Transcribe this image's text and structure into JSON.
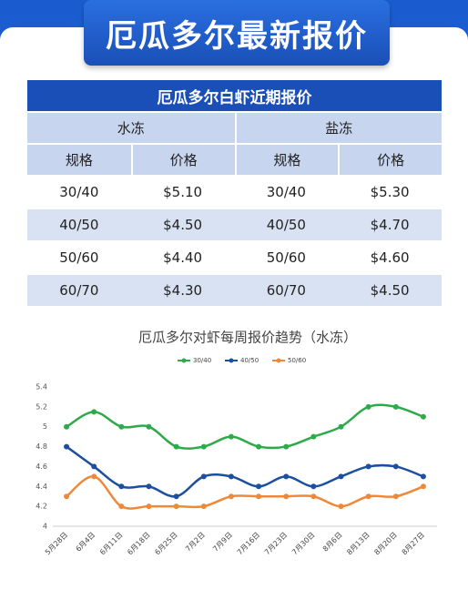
{
  "header": {
    "title": "厄瓜多尔最新报价"
  },
  "table": {
    "title": "厄瓜多尔白虾近期报价",
    "groups": [
      "水冻",
      "盐冻"
    ],
    "columns": [
      "规格",
      "价格",
      "规格",
      "价格"
    ],
    "rows": [
      [
        "30/40",
        "$5.10",
        "30/40",
        "$5.30"
      ],
      [
        "40/50",
        "$4.50",
        "40/50",
        "$4.70"
      ],
      [
        "50/60",
        "$4.40",
        "50/60",
        "$4.60"
      ],
      [
        "60/70",
        "$4.30",
        "60/70",
        "$4.50"
      ]
    ]
  },
  "chart_data": {
    "type": "line",
    "title": "厄瓜多尔对虾每周报价趋势（水冻）",
    "categories": [
      "5月28日",
      "6月4日",
      "6月11日",
      "6月18日",
      "6月25日",
      "7月2日",
      "7月9日",
      "7月16日",
      "7月23日",
      "7月30日",
      "8月6日",
      "8月13日",
      "8月20日",
      "8月27日"
    ],
    "series": [
      {
        "name": "30/40",
        "color": "#2eaa4a",
        "values": [
          5.0,
          5.15,
          5.0,
          5.0,
          4.8,
          4.8,
          4.9,
          4.8,
          4.8,
          4.9,
          5.0,
          5.2,
          5.2,
          5.1
        ]
      },
      {
        "name": "40/50",
        "color": "#1c4fa0",
        "values": [
          4.8,
          4.6,
          4.4,
          4.4,
          4.3,
          4.5,
          4.5,
          4.4,
          4.5,
          4.4,
          4.5,
          4.6,
          4.6,
          4.5
        ]
      },
      {
        "name": "50/60",
        "color": "#f0883a",
        "values": [
          4.3,
          4.5,
          4.2,
          4.2,
          4.2,
          4.2,
          4.3,
          4.3,
          4.3,
          4.3,
          4.2,
          4.3,
          4.3,
          4.4
        ]
      }
    ],
    "ylim": [
      4,
      5.4
    ],
    "yticks": [
      4,
      4.2,
      4.4,
      4.6,
      4.8,
      5,
      5.2,
      5.4
    ],
    "grid": false,
    "legend": "top"
  }
}
